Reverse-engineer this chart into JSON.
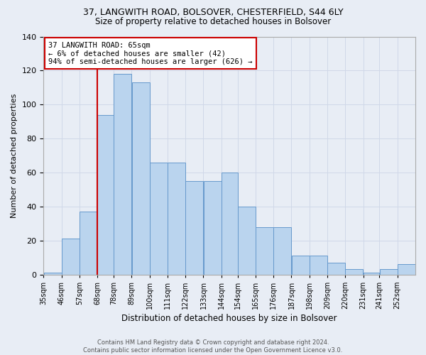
{
  "title": "37, LANGWITH ROAD, BOLSOVER, CHESTERFIELD, S44 6LY",
  "subtitle": "Size of property relative to detached houses in Bolsover",
  "xlabel": "Distribution of detached houses by size in Bolsover",
  "ylabel": "Number of detached properties",
  "bin_labels": [
    "35sqm",
    "46sqm",
    "57sqm",
    "68sqm",
    "78sqm",
    "89sqm",
    "100sqm",
    "111sqm",
    "122sqm",
    "133sqm",
    "144sqm",
    "154sqm",
    "165sqm",
    "176sqm",
    "187sqm",
    "198sqm",
    "209sqm",
    "220sqm",
    "231sqm",
    "241sqm",
    "252sqm"
  ],
  "bin_lefts": [
    35,
    46,
    57,
    68,
    78,
    89,
    100,
    111,
    122,
    133,
    144,
    154,
    165,
    176,
    187,
    198,
    209,
    220,
    231,
    241,
    252
  ],
  "bar_values": [
    1,
    21,
    37,
    94,
    118,
    113,
    66,
    66,
    55,
    55,
    60,
    40,
    28,
    28,
    11,
    11,
    7,
    3,
    1,
    3,
    6
  ],
  "bar_color": "#bad4ee",
  "bar_edge_color": "#6699cc",
  "grid_color": "#d0d8e8",
  "background_color": "#e8edf5",
  "vline_x_label_idx": 2,
  "vline_color": "#cc0000",
  "annotation_text": "37 LANGWITH ROAD: 65sqm\n← 6% of detached houses are smaller (42)\n94% of semi-detached houses are larger (626) →",
  "annotation_box_color": "#ffffff",
  "annotation_border_color": "#cc0000",
  "footer_text": "Contains HM Land Registry data © Crown copyright and database right 2024.\nContains public sector information licensed under the Open Government Licence v3.0.",
  "ylim": [
    0,
    140
  ],
  "title_fontsize": 9,
  "subtitle_fontsize": 8.5
}
